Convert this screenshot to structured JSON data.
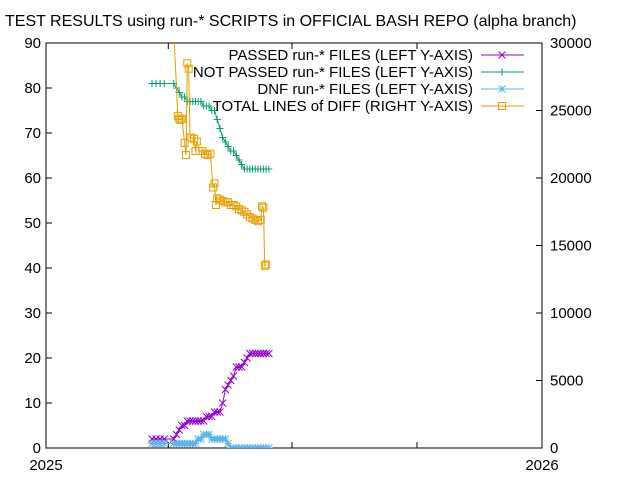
{
  "chart_data": {
    "type": "line",
    "title": "TEST RESULTS using run-* SCRIPTS in OFFICIAL BASH REPO (alpha branch)",
    "xlabel": "",
    "ylabel": "",
    "y2label": "",
    "x_ticks": [
      "2025",
      "2026"
    ],
    "xlim": [
      "2025-01-01",
      "2026-01-01"
    ],
    "ylim": [
      0,
      90
    ],
    "y_ticks": [
      0,
      10,
      20,
      30,
      40,
      50,
      60,
      70,
      80,
      90
    ],
    "y2lim": [
      0,
      30000
    ],
    "y2_ticks": [
      0,
      5000,
      10000,
      15000,
      20000,
      25000,
      30000
    ],
    "grid": false,
    "legend_position": "top-right",
    "series": [
      {
        "name": "PASSED run-* FILES (LEFT Y-AXIS)",
        "axis": "left",
        "color": "#9400d3",
        "marker": "x",
        "points": [
          [
            "2025-03-20",
            2
          ],
          [
            "2025-03-23",
            2
          ],
          [
            "2025-03-26",
            2
          ],
          [
            "2025-03-29",
            2
          ],
          [
            "2025-04-05",
            2
          ],
          [
            "2025-04-07",
            3
          ],
          [
            "2025-04-09",
            4
          ],
          [
            "2025-04-11",
            5
          ],
          [
            "2025-04-13",
            5
          ],
          [
            "2025-04-15",
            6
          ],
          [
            "2025-04-17",
            6
          ],
          [
            "2025-04-19",
            6
          ],
          [
            "2025-04-21",
            6
          ],
          [
            "2025-04-23",
            6
          ],
          [
            "2025-04-25",
            6
          ],
          [
            "2025-04-27",
            6
          ],
          [
            "2025-04-29",
            7
          ],
          [
            "2025-05-01",
            7
          ],
          [
            "2025-05-03",
            7
          ],
          [
            "2025-05-05",
            8
          ],
          [
            "2025-05-07",
            8
          ],
          [
            "2025-05-09",
            8
          ],
          [
            "2025-05-11",
            10
          ],
          [
            "2025-05-13",
            13
          ],
          [
            "2025-05-15",
            14
          ],
          [
            "2025-05-17",
            15
          ],
          [
            "2025-05-19",
            16
          ],
          [
            "2025-05-21",
            18
          ],
          [
            "2025-05-23",
            18
          ],
          [
            "2025-05-25",
            18
          ],
          [
            "2025-05-27",
            19
          ],
          [
            "2025-05-29",
            20
          ],
          [
            "2025-05-31",
            21
          ],
          [
            "2025-06-02",
            21
          ],
          [
            "2025-06-04",
            21
          ],
          [
            "2025-06-06",
            21
          ],
          [
            "2025-06-08",
            21
          ],
          [
            "2025-06-10",
            21
          ],
          [
            "2025-06-12",
            21
          ],
          [
            "2025-06-14",
            21
          ]
        ]
      },
      {
        "name": "NOT PASSED run-* FILES (LEFT Y-AXIS)",
        "axis": "left",
        "color": "#009e73",
        "marker": "+",
        "points": [
          [
            "2025-03-20",
            81
          ],
          [
            "2025-03-23",
            81
          ],
          [
            "2025-03-26",
            81
          ],
          [
            "2025-03-29",
            81
          ],
          [
            "2025-04-05",
            81
          ],
          [
            "2025-04-07",
            80
          ],
          [
            "2025-04-09",
            79
          ],
          [
            "2025-04-11",
            78
          ],
          [
            "2025-04-13",
            78
          ],
          [
            "2025-04-15",
            77
          ],
          [
            "2025-04-17",
            77
          ],
          [
            "2025-04-19",
            77
          ],
          [
            "2025-04-21",
            77
          ],
          [
            "2025-04-23",
            77
          ],
          [
            "2025-04-25",
            77
          ],
          [
            "2025-04-27",
            76
          ],
          [
            "2025-04-29",
            76
          ],
          [
            "2025-05-01",
            76
          ],
          [
            "2025-05-03",
            75
          ],
          [
            "2025-05-05",
            75
          ],
          [
            "2025-05-07",
            73
          ],
          [
            "2025-05-09",
            71
          ],
          [
            "2025-05-11",
            69
          ],
          [
            "2025-05-13",
            68
          ],
          [
            "2025-05-15",
            67
          ],
          [
            "2025-05-17",
            66
          ],
          [
            "2025-05-19",
            66
          ],
          [
            "2025-05-21",
            65
          ],
          [
            "2025-05-23",
            64
          ],
          [
            "2025-05-25",
            63
          ],
          [
            "2025-05-27",
            62
          ],
          [
            "2025-05-29",
            62
          ],
          [
            "2025-05-31",
            62
          ],
          [
            "2025-06-02",
            62
          ],
          [
            "2025-06-04",
            62
          ],
          [
            "2025-06-06",
            62
          ],
          [
            "2025-06-08",
            62
          ],
          [
            "2025-06-10",
            62
          ],
          [
            "2025-06-12",
            62
          ],
          [
            "2025-06-14",
            62
          ]
        ]
      },
      {
        "name": "DNF run-* FILES (LEFT Y-AXIS)",
        "axis": "left",
        "color": "#56b4e9",
        "marker": "*",
        "points": [
          [
            "2025-03-20",
            1
          ],
          [
            "2025-03-23",
            1
          ],
          [
            "2025-03-26",
            1
          ],
          [
            "2025-03-29",
            1
          ],
          [
            "2025-04-05",
            1
          ],
          [
            "2025-04-07",
            1
          ],
          [
            "2025-04-09",
            1
          ],
          [
            "2025-04-11",
            1
          ],
          [
            "2025-04-13",
            1
          ],
          [
            "2025-04-15",
            1
          ],
          [
            "2025-04-17",
            1
          ],
          [
            "2025-04-19",
            1
          ],
          [
            "2025-04-21",
            1
          ],
          [
            "2025-04-23",
            2
          ],
          [
            "2025-04-25",
            2
          ],
          [
            "2025-04-27",
            3
          ],
          [
            "2025-04-29",
            3
          ],
          [
            "2025-05-01",
            3
          ],
          [
            "2025-05-03",
            2
          ],
          [
            "2025-05-05",
            2
          ],
          [
            "2025-05-07",
            2
          ],
          [
            "2025-05-09",
            2
          ],
          [
            "2025-05-11",
            2
          ],
          [
            "2025-05-13",
            2
          ],
          [
            "2025-05-15",
            1
          ],
          [
            "2025-05-17",
            0
          ],
          [
            "2025-05-19",
            0
          ],
          [
            "2025-05-21",
            0
          ],
          [
            "2025-05-23",
            0
          ],
          [
            "2025-05-25",
            0
          ],
          [
            "2025-05-27",
            0
          ],
          [
            "2025-05-29",
            0
          ],
          [
            "2025-05-31",
            0
          ],
          [
            "2025-06-02",
            0
          ],
          [
            "2025-06-04",
            0
          ],
          [
            "2025-06-06",
            0
          ],
          [
            "2025-06-08",
            0
          ],
          [
            "2025-06-10",
            0
          ],
          [
            "2025-06-12",
            0
          ],
          [
            "2025-06-14",
            0
          ]
        ]
      },
      {
        "name": "TOTAL LINES of DIFF (RIGHT Y-AXIS)",
        "axis": "right",
        "color": "#e69f00",
        "marker": "square",
        "points": [
          [
            "2025-04-05",
            31000
          ],
          [
            "2025-04-08",
            24600
          ],
          [
            "2025-04-09",
            24400
          ],
          [
            "2025-04-10",
            24300
          ],
          [
            "2025-04-11",
            24400
          ],
          [
            "2025-04-13",
            22600
          ],
          [
            "2025-04-14",
            21700
          ],
          [
            "2025-04-15",
            28500
          ],
          [
            "2025-04-16",
            28100
          ],
          [
            "2025-04-17",
            23000
          ],
          [
            "2025-04-18",
            23000
          ],
          [
            "2025-04-20",
            22900
          ],
          [
            "2025-04-21",
            22000
          ],
          [
            "2025-04-22",
            22700
          ],
          [
            "2025-04-24",
            22000
          ],
          [
            "2025-04-26",
            22000
          ],
          [
            "2025-04-28",
            21800
          ],
          [
            "2025-04-30",
            21700
          ],
          [
            "2025-05-02",
            21800
          ],
          [
            "2025-05-04",
            19300
          ],
          [
            "2025-05-05",
            19600
          ],
          [
            "2025-05-06",
            18000
          ],
          [
            "2025-05-07",
            18500
          ],
          [
            "2025-05-09",
            18400
          ],
          [
            "2025-05-11",
            18300
          ],
          [
            "2025-05-13",
            18200
          ],
          [
            "2025-05-15",
            18200
          ],
          [
            "2025-05-17",
            18000
          ],
          [
            "2025-05-19",
            18000
          ],
          [
            "2025-05-21",
            17900
          ],
          [
            "2025-05-23",
            17700
          ],
          [
            "2025-05-25",
            17600
          ],
          [
            "2025-05-27",
            17500
          ],
          [
            "2025-05-29",
            17300
          ],
          [
            "2025-05-31",
            17100
          ],
          [
            "2025-06-02",
            17000
          ],
          [
            "2025-06-04",
            16900
          ],
          [
            "2025-06-06",
            16800
          ],
          [
            "2025-06-08",
            16900
          ],
          [
            "2025-06-09",
            17900
          ],
          [
            "2025-06-10",
            17800
          ],
          [
            "2025-06-11",
            13500
          ],
          [
            "2025-06-12",
            13600
          ]
        ]
      }
    ]
  }
}
